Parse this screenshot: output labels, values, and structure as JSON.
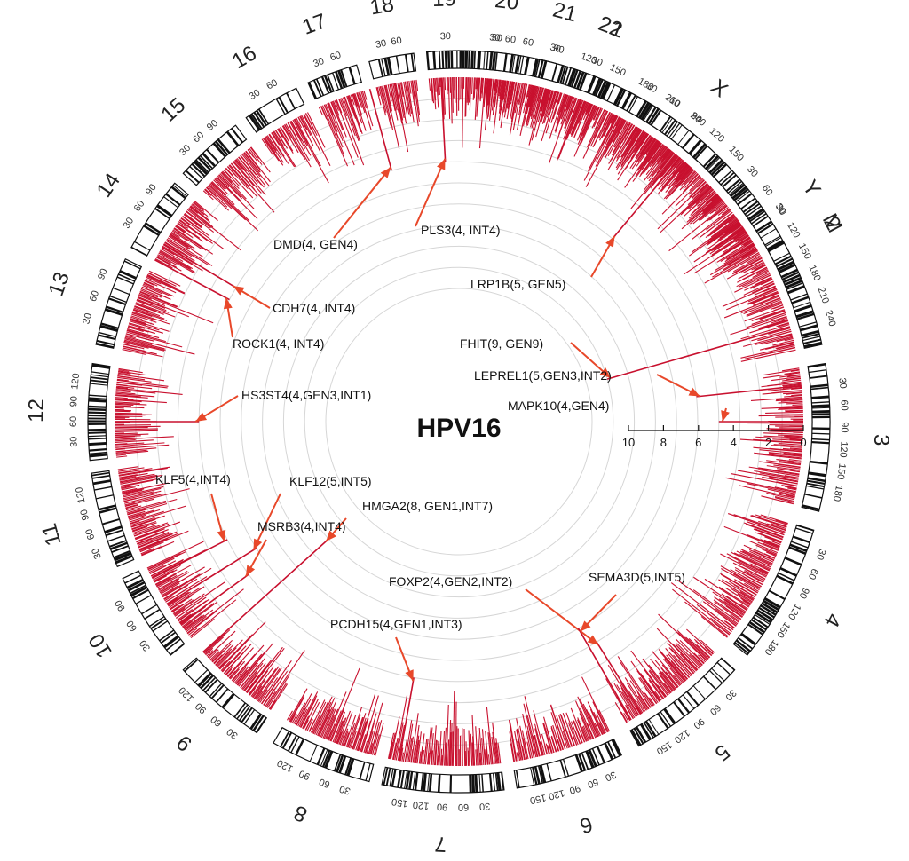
{
  "chart_data": {
    "type": "circos",
    "title": "HPV16",
    "track_color": "#c8102e",
    "arrow_color": "#e8482a",
    "ideogram_color": "#111111",
    "chromosomes": [
      {
        "name": "1",
        "ticks": [
          "30",
          "60",
          "90",
          "120",
          "150",
          "180",
          "210",
          "240"
        ]
      },
      {
        "name": "2",
        "ticks": [
          "30",
          "60",
          "90",
          "120",
          "150",
          "180",
          "210",
          "240"
        ]
      },
      {
        "name": "3",
        "ticks": [
          "30",
          "60",
          "90",
          "120",
          "150",
          "180"
        ]
      },
      {
        "name": "4",
        "ticks": [
          "30",
          "60",
          "90",
          "120",
          "150",
          "180"
        ]
      },
      {
        "name": "5",
        "ticks": [
          "30",
          "60",
          "90",
          "120",
          "150"
        ]
      },
      {
        "name": "6",
        "ticks": [
          "30",
          "60",
          "90",
          "120",
          "150"
        ]
      },
      {
        "name": "7",
        "ticks": [
          "30",
          "60",
          "90",
          "120",
          "150"
        ]
      },
      {
        "name": "8",
        "ticks": [
          "30",
          "60",
          "90",
          "120"
        ]
      },
      {
        "name": "9",
        "ticks": [
          "30",
          "60",
          "90",
          "120"
        ]
      },
      {
        "name": "10",
        "ticks": [
          "30",
          "60",
          "90"
        ]
      },
      {
        "name": "11",
        "ticks": [
          "30",
          "60",
          "90",
          "120"
        ]
      },
      {
        "name": "12",
        "ticks": [
          "30",
          "60",
          "90",
          "120"
        ]
      },
      {
        "name": "13",
        "ticks": [
          "30",
          "60",
          "90"
        ]
      },
      {
        "name": "14",
        "ticks": [
          "30",
          "60",
          "90"
        ]
      },
      {
        "name": "15",
        "ticks": [
          "30",
          "60",
          "90"
        ]
      },
      {
        "name": "16",
        "ticks": [
          "30",
          "60"
        ]
      },
      {
        "name": "17",
        "ticks": [
          "30",
          "60"
        ]
      },
      {
        "name": "18",
        "ticks": [
          "30",
          "60"
        ]
      },
      {
        "name": "19",
        "ticks": [
          "30"
        ]
      },
      {
        "name": "20",
        "ticks": [
          "30",
          "60"
        ]
      },
      {
        "name": "21",
        "ticks": [
          "30"
        ]
      },
      {
        "name": "22",
        "ticks": [
          "30"
        ]
      },
      {
        "name": "X",
        "ticks": [
          "30",
          "60",
          "90",
          "120",
          "150"
        ]
      },
      {
        "name": "Y",
        "ticks": [
          "30"
        ]
      },
      {
        "name": "M",
        "ticks": []
      }
    ],
    "radial_axis": {
      "ticks": [
        "10",
        "8",
        "6",
        "4",
        "2",
        "0"
      ],
      "range": [
        0,
        10
      ]
    },
    "annotations": [
      {
        "label": "PLS3(4, INT4)",
        "chr": "X",
        "value": 4
      },
      {
        "label": "DMD(4, GEN4)",
        "chr": "X",
        "value": 4
      },
      {
        "label": "LRP1B(5, GEN5)",
        "chr": "2",
        "value": 5
      },
      {
        "label": "CDH7(4, INT4)",
        "chr": "18",
        "value": 4
      },
      {
        "label": "ROCK1(4, INT4)",
        "chr": "18",
        "value": 4
      },
      {
        "label": "FHIT(9, GEN9)",
        "chr": "3",
        "value": 9
      },
      {
        "label": "LEPREL1(5,GEN3,INT2)",
        "chr": "3",
        "value": 5
      },
      {
        "label": "HS3ST4(4,GEN3,INT1)",
        "chr": "16",
        "value": 4
      },
      {
        "label": "MAPK10(4,GEN4)",
        "chr": "4",
        "value": 4
      },
      {
        "label": "KLF5(4,INT4)",
        "chr": "13",
        "value": 4
      },
      {
        "label": "KLF12(5,INT5)",
        "chr": "13",
        "value": 5
      },
      {
        "label": "HMGA2(8, GEN1,INT7)",
        "chr": "12",
        "value": 8
      },
      {
        "label": "MSRB3(4,INT4)",
        "chr": "12",
        "value": 4
      },
      {
        "label": "FOXP2(4,GEN2,INT2)",
        "chr": "7",
        "value": 4
      },
      {
        "label": "SEMA3D(5,INT5)",
        "chr": "7",
        "value": 5
      },
      {
        "label": "PCDH15(4,GEN1,INT3)",
        "chr": "10",
        "value": 4
      }
    ]
  }
}
